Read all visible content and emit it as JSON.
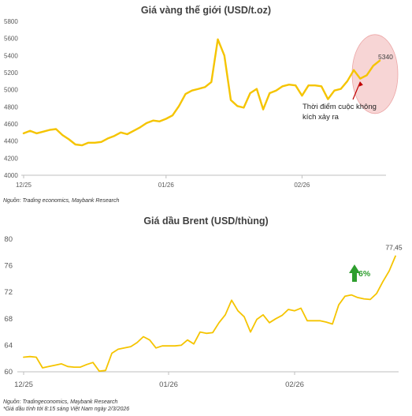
{
  "chart_data": [
    {
      "type": "line",
      "title": "Giá vàng thế giới (USD/t.oz)",
      "xlabel": "",
      "ylabel": "",
      "ylim": [
        4000,
        5800
      ],
      "yticks": [
        4000,
        4200,
        4400,
        4600,
        4800,
        5000,
        5200,
        5400,
        5600,
        5800
      ],
      "xticks": [
        {
          "label": "12/25",
          "x": 0
        },
        {
          "label": "01/26",
          "x": 22
        },
        {
          "label": "02/26",
          "x": 43
        }
      ],
      "line_color": "#F5C400",
      "series": [
        {
          "values": [
            4490,
            4520,
            4490,
            4510,
            4530,
            4540,
            4470,
            4420,
            4360,
            4350,
            4380,
            4380,
            4390,
            4430,
            4460,
            4500,
            4480,
            4520,
            4560,
            4610,
            4640,
            4630,
            4660,
            4700,
            4810,
            4950,
            4990,
            5010,
            5030,
            5090,
            5590,
            5400,
            4880,
            4810,
            4790,
            4960,
            5010,
            4770,
            4960,
            4990,
            5040,
            5060,
            5050,
            4930,
            5050,
            5050,
            5040,
            4890,
            4990,
            5010,
            5100,
            5230,
            5130,
            5170,
            5280,
            5340
          ]
        }
      ],
      "end_label": "5340",
      "annotation": "Thời điểm cuộc không kích xảy ra",
      "source": "Nguồn: Trading economics, Maybank Research"
    },
    {
      "type": "line",
      "title": "Giá dầu Brent (USD/thùng)",
      "xlabel": "",
      "ylabel": "",
      "ylim": [
        60,
        80
      ],
      "yticks": [
        60,
        64,
        68,
        72,
        76,
        80
      ],
      "xticks": [
        {
          "label": "12/25",
          "x": 0
        },
        {
          "label": "01/26",
          "x": 23
        },
        {
          "label": "02/26",
          "x": 43
        }
      ],
      "line_color": "#F5C400",
      "series": [
        {
          "values": [
            62.2,
            62.3,
            62.2,
            60.6,
            60.8,
            61.0,
            61.2,
            60.8,
            60.7,
            60.7,
            61.1,
            61.4,
            60.1,
            60.2,
            62.8,
            63.4,
            63.6,
            63.8,
            64.4,
            65.3,
            64.8,
            63.6,
            63.9,
            63.9,
            63.9,
            64.0,
            64.8,
            64.2,
            66.0,
            65.8,
            65.9,
            67.4,
            68.6,
            70.8,
            69.2,
            68.3,
            66.0,
            67.9,
            68.6,
            67.4,
            68.0,
            68.5,
            69.4,
            69.2,
            69.6,
            67.7,
            67.7,
            67.7,
            67.5,
            67.2,
            70.1,
            71.4,
            71.6,
            71.2,
            71.0,
            70.9,
            71.8,
            73.6,
            75.2,
            77.45
          ]
        }
      ],
      "end_label": "77,45",
      "change_label": "6%",
      "source": "Nguồn: Tradingeconomics, Maybank Research",
      "note": "*Giá dầu tính tới 8:15 sáng Việt Nam ngày 2/3/2026"
    }
  ]
}
